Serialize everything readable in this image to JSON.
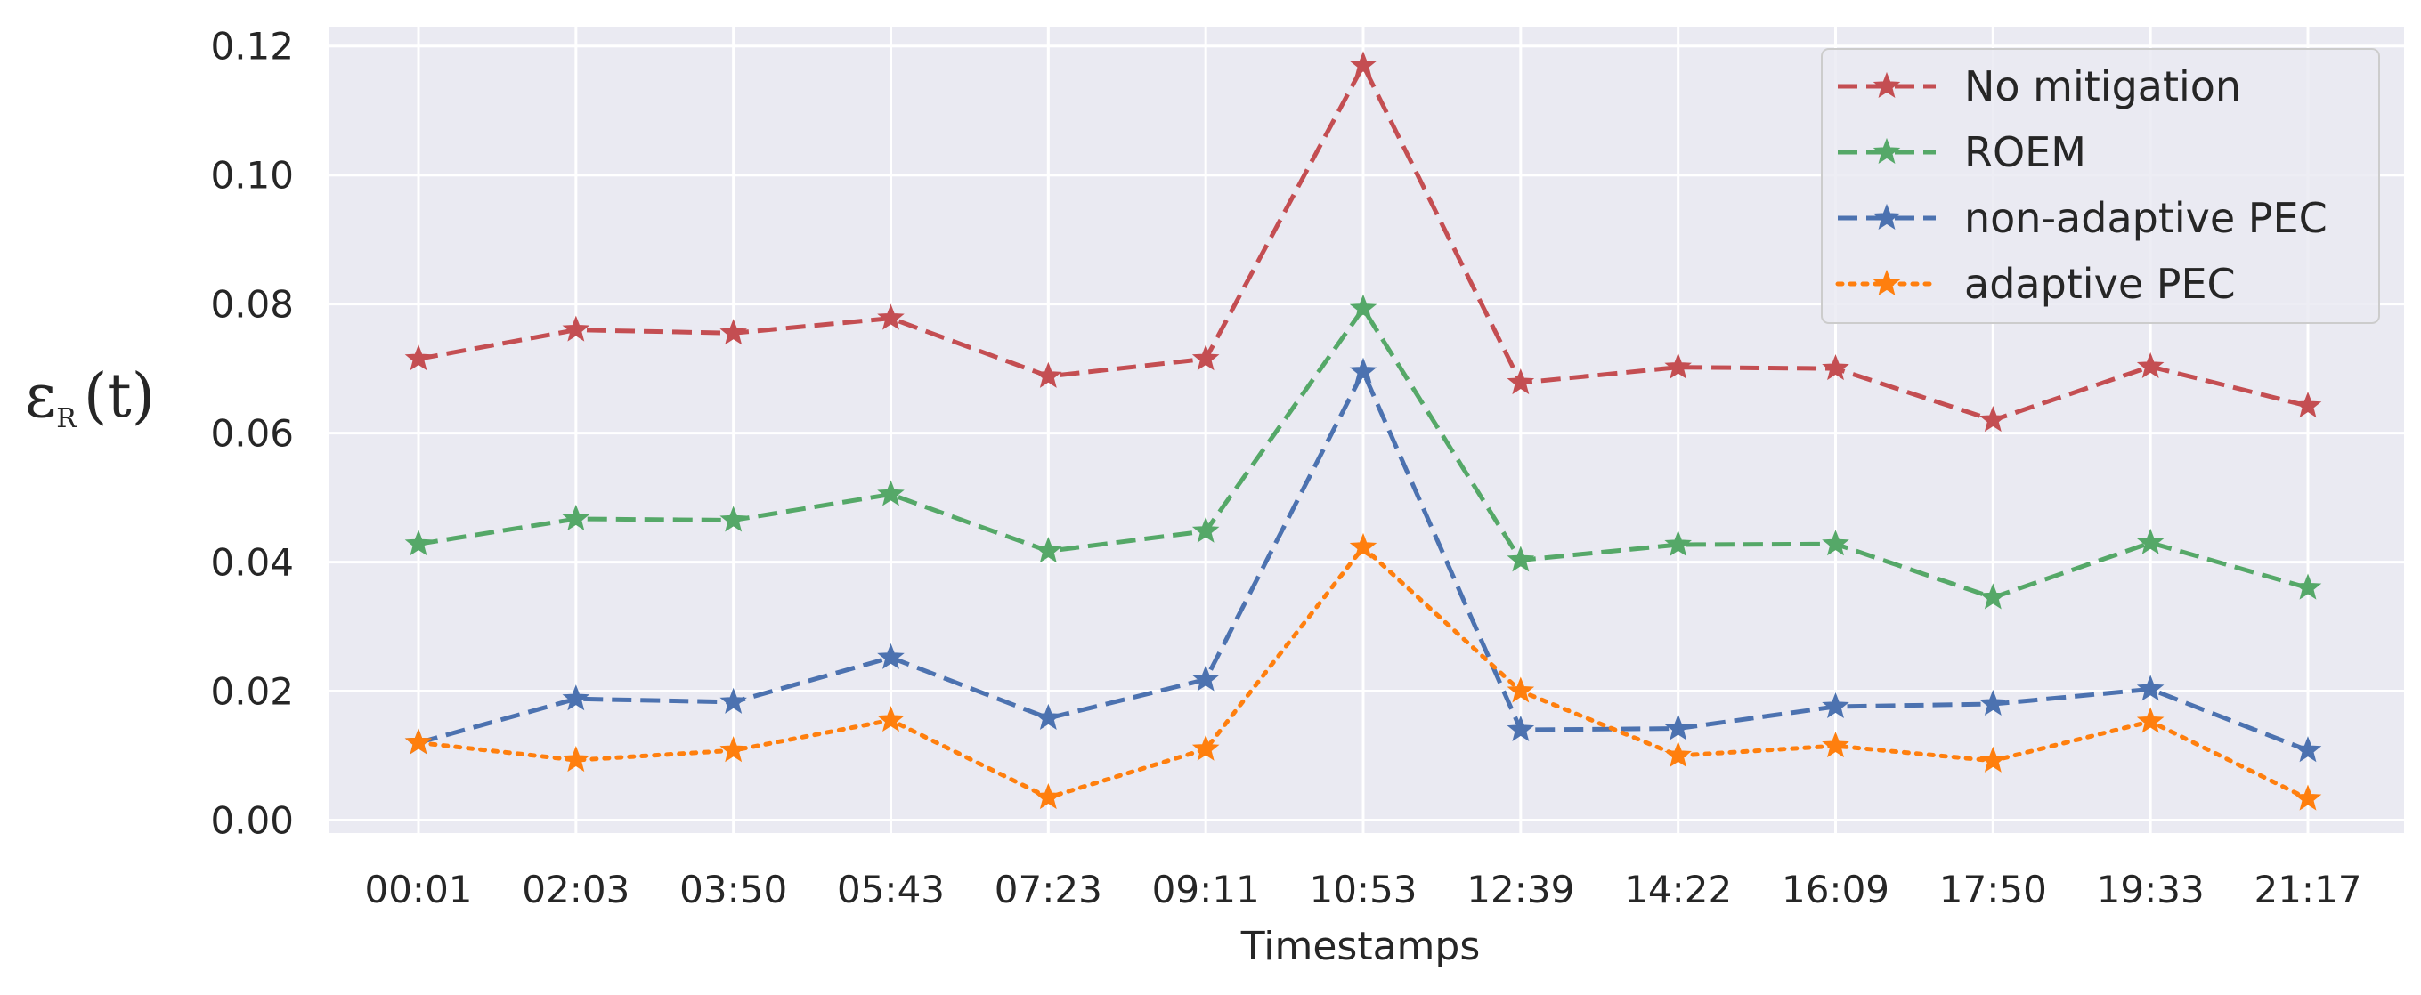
{
  "chart_data": {
    "type": "line",
    "title": "",
    "xlabel": "Timestamps",
    "ylabel": "ε_R(t)",
    "ylabel_parts": {
      "main": "ε",
      "sub": "R",
      "arg": "(t)"
    },
    "categories": [
      "00:01",
      "02:03",
      "03:50",
      "05:43",
      "07:23",
      "09:11",
      "10:53",
      "12:39",
      "14:22",
      "16:09",
      "17:50",
      "19:33",
      "21:17"
    ],
    "yticks": [
      "0.00",
      "0.02",
      "0.04",
      "0.06",
      "0.08",
      "0.10",
      "0.12"
    ],
    "ylim": [
      -0.002,
      0.123
    ],
    "grid": true,
    "legend_position": "top-right",
    "series": [
      {
        "name": "No mitigation",
        "color": "#c44e52",
        "dash": "dashed",
        "marker": "star",
        "values": [
          0.0715,
          0.076,
          0.0755,
          0.0778,
          0.0688,
          0.0715,
          0.117,
          0.0678,
          0.0702,
          0.07,
          0.062,
          0.0703,
          0.0642
        ]
      },
      {
        "name": "ROEM",
        "color": "#55a868",
        "dash": "dashed",
        "marker": "star",
        "values": [
          0.0428,
          0.0467,
          0.0465,
          0.0505,
          0.0417,
          0.0448,
          0.0793,
          0.0403,
          0.0427,
          0.0428,
          0.0345,
          0.043,
          0.036
        ]
      },
      {
        "name": "non-adaptive PEC",
        "color": "#4c72b0",
        "dash": "dashed",
        "marker": "star",
        "values": [
          0.012,
          0.0188,
          0.0183,
          0.0252,
          0.0158,
          0.0218,
          0.0695,
          0.014,
          0.0142,
          0.0176,
          0.018,
          0.0203,
          0.0108
        ]
      },
      {
        "name": "adaptive PEC",
        "color": "#ff7f0e",
        "dash": "dotted",
        "marker": "star",
        "values": [
          0.012,
          0.0093,
          0.0108,
          0.0155,
          0.0035,
          0.011,
          0.0423,
          0.02,
          0.01,
          0.0115,
          0.0092,
          0.0153,
          0.0033
        ]
      }
    ]
  }
}
